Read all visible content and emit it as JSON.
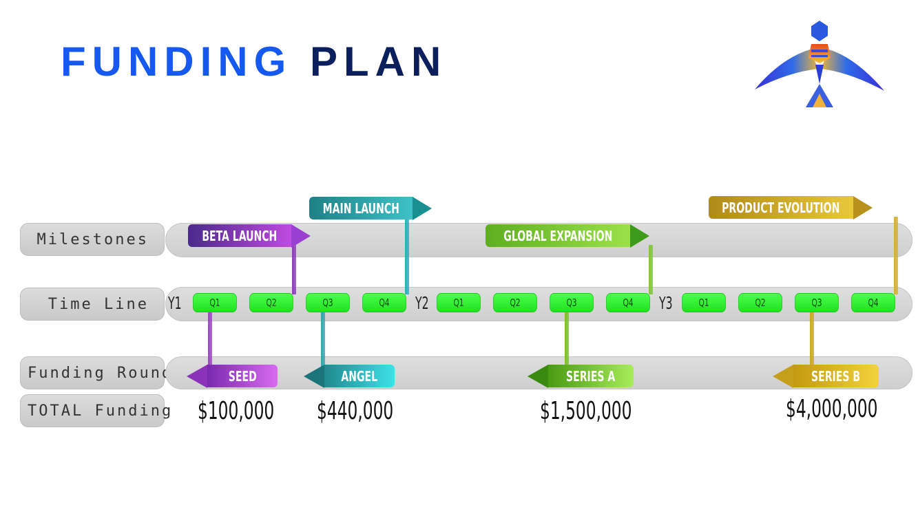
{
  "title": {
    "part1": "FUNDING",
    "part2": "PLAN"
  },
  "rows": {
    "milestones": "Milestones",
    "timeline": "Time Line",
    "funding_round": "Funding Round",
    "total_funding": "TOTAL Funding"
  },
  "years": [
    "Y1",
    "Y2",
    "Y3"
  ],
  "quarters": [
    "Q1",
    "Q2",
    "Q3",
    "Q4"
  ],
  "milestones": [
    {
      "label": "BETA LAUNCH",
      "year": 1,
      "quarter": 2
    },
    {
      "label": "MAIN LAUNCH",
      "year": 1,
      "quarter": 4
    },
    {
      "label": "GLOBAL EXPANSION",
      "year": 2,
      "quarter": 4
    },
    {
      "label": "PRODUCT EVOLUTION",
      "year": 3,
      "quarter": 4
    }
  ],
  "funding_rounds": [
    {
      "label": "SEED",
      "year": 1,
      "quarter": 1,
      "total": "$100,000"
    },
    {
      "label": "ANGEL",
      "year": 1,
      "quarter": 3,
      "total": "$440,000"
    },
    {
      "label": "SERIES A",
      "year": 2,
      "quarter": 3,
      "total": "$1,500,000"
    },
    {
      "label": "SERIES B",
      "year": 3,
      "quarter": 3,
      "total": "$4,000,000"
    }
  ],
  "colors": {
    "title_accent": "#1659f0",
    "title_dark": "#0b1f5c",
    "quarter_fill": "#33f533",
    "beta": "#9b3fd0",
    "main": "#27a3aa",
    "global": "#6fc02c",
    "evolution": "#d4b22a"
  }
}
